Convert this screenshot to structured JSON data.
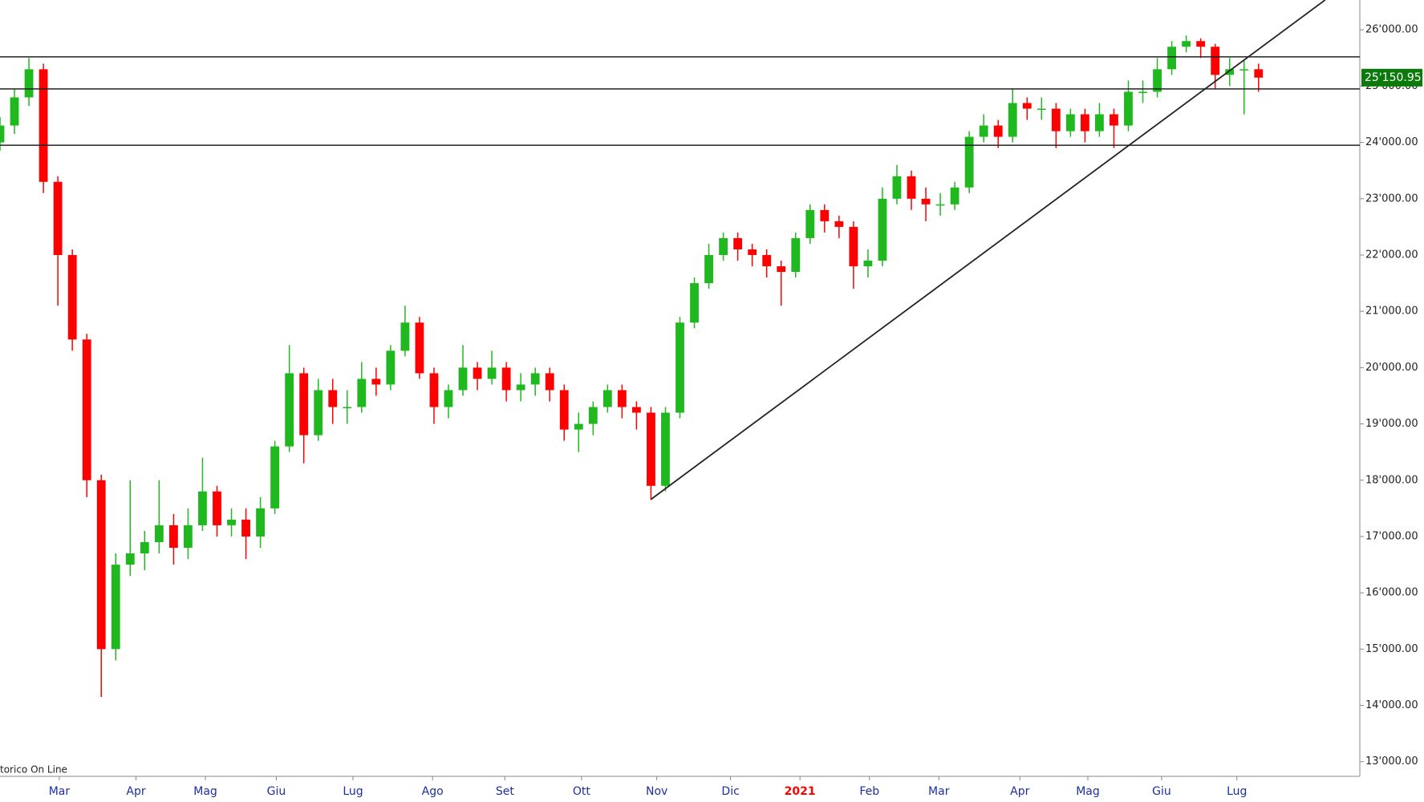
{
  "chart_data": {
    "type": "candlestick",
    "up_color": "#1fb81f",
    "down_color": "#ff0000",
    "open": [
      24000,
      24300,
      24800,
      25300,
      23300,
      22000,
      20500,
      18000,
      15000,
      16500,
      16700,
      16900,
      17200,
      16800,
      17200,
      17800,
      17200,
      17300,
      17000,
      17500,
      18600,
      19900,
      18800,
      19600,
      19300,
      19300,
      19800,
      19700,
      20300,
      20800,
      19900,
      19300,
      19600,
      20000,
      19800,
      20000,
      19600,
      19700,
      19900,
      19600,
      18900,
      19000,
      19300,
      19600,
      19300,
      19200,
      17900,
      19200,
      20800,
      21500,
      22000,
      22300,
      22100,
      22000,
      21800,
      21700,
      22300,
      22800,
      22600,
      22500,
      21800,
      21900,
      23000,
      23400,
      23000,
      22900,
      22900,
      23200,
      24100,
      24300,
      24100,
      24700,
      24600,
      24600,
      24200,
      24500,
      24200,
      24500,
      24300,
      24900,
      24900,
      25300,
      25700,
      25800,
      25700,
      25200,
      25300,
      25300
    ],
    "high": [
      24450,
      24950,
      25500,
      25400,
      23400,
      22100,
      20600,
      18100,
      16700,
      18000,
      17100,
      18000,
      17400,
      17500,
      18400,
      17900,
      17500,
      17500,
      17700,
      18700,
      20400,
      20000,
      19800,
      19800,
      19600,
      20100,
      20000,
      20400,
      21100,
      20900,
      20000,
      19700,
      20400,
      20100,
      20300,
      20100,
      19900,
      20000,
      20000,
      19700,
      19200,
      19400,
      19700,
      19700,
      19400,
      19300,
      19300,
      20900,
      21600,
      22200,
      22400,
      22400,
      22200,
      22100,
      21900,
      22400,
      22900,
      22900,
      22700,
      22600,
      22100,
      23200,
      23600,
      23500,
      23200,
      23100,
      23300,
      24200,
      24500,
      24400,
      24950,
      24800,
      24800,
      24700,
      24600,
      24600,
      24700,
      24600,
      25100,
      25100,
      25500,
      25800,
      25900,
      25850,
      25750,
      25500,
      25450,
      25400
    ],
    "low": [
      23850,
      24150,
      24650,
      23100,
      21100,
      20300,
      17700,
      14150,
      14800,
      16300,
      16400,
      16700,
      16500,
      16600,
      17100,
      17000,
      17000,
      16600,
      16800,
      17400,
      18500,
      18300,
      18700,
      19000,
      19000,
      19200,
      19500,
      19600,
      20200,
      19800,
      19000,
      19100,
      19500,
      19600,
      19700,
      19400,
      19400,
      19500,
      19400,
      18700,
      18500,
      18800,
      19200,
      19100,
      18900,
      17650,
      17800,
      19100,
      20700,
      21400,
      21900,
      21900,
      21800,
      21600,
      21100,
      21600,
      22200,
      22400,
      22300,
      21400,
      21600,
      21800,
      22900,
      22800,
      22600,
      22700,
      22800,
      23100,
      24000,
      23900,
      24000,
      24400,
      24400,
      23900,
      24100,
      24000,
      24100,
      23900,
      24200,
      24700,
      24800,
      25200,
      25600,
      25500,
      24950,
      25000,
      24500,
      24900
    ],
    "close": [
      24300,
      24800,
      25300,
      23300,
      22000,
      20500,
      18000,
      15000,
      16500,
      16700,
      16900,
      17200,
      16800,
      17200,
      17800,
      17200,
      17300,
      17000,
      17500,
      18600,
      19900,
      18800,
      19600,
      19300,
      19300,
      19800,
      19700,
      20300,
      20800,
      19900,
      19300,
      19600,
      20000,
      19800,
      20000,
      19600,
      19700,
      19900,
      19600,
      18900,
      19000,
      19300,
      19600,
      19300,
      19200,
      17900,
      19200,
      20800,
      21500,
      22000,
      22300,
      22100,
      22000,
      21800,
      21700,
      22300,
      22800,
      22600,
      22500,
      21800,
      21900,
      23000,
      23400,
      23000,
      22900,
      22900,
      23200,
      24100,
      24300,
      24100,
      24700,
      24600,
      24600,
      24200,
      24500,
      24200,
      24500,
      24300,
      24900,
      24900,
      25300,
      25700,
      25800,
      25700,
      25200,
      25300,
      25300,
      25150.95
    ],
    "xlim": [
      0,
      94
    ],
    "xticks": [
      {
        "value": 4.1,
        "label": "Mar"
      },
      {
        "value": 9.4,
        "label": "Apr"
      },
      {
        "value": 14.2,
        "label": "Mag"
      },
      {
        "value": 19.1,
        "label": "Giu"
      },
      {
        "value": 24.4,
        "label": "Lug"
      },
      {
        "value": 29.9,
        "label": "Ago"
      },
      {
        "value": 34.9,
        "label": "Set"
      },
      {
        "value": 40.2,
        "label": "Ott"
      },
      {
        "value": 45.4,
        "label": "Nov"
      },
      {
        "value": 50.5,
        "label": "Dic"
      },
      {
        "value": 55.3,
        "label": "2021"
      },
      {
        "value": 60.1,
        "label": "Feb"
      },
      {
        "value": 64.9,
        "label": "Mar"
      },
      {
        "value": 70.5,
        "label": "Apr"
      },
      {
        "value": 75.2,
        "label": "Mag"
      },
      {
        "value": 80.3,
        "label": "Giu"
      },
      {
        "value": 85.5,
        "label": "Lug"
      }
    ],
    "year_tick_index": 10,
    "xtick_color": "#1c2fa0",
    "year_tick_color": "#ff0000",
    "ylim": [
      12740,
      26530
    ],
    "yticks": [
      {
        "value": 13000,
        "label": "13'000.00"
      },
      {
        "value": 14000,
        "label": "14'000.00"
      },
      {
        "value": 15000,
        "label": "15'000.00"
      },
      {
        "value": 16000,
        "label": "16'000.00"
      },
      {
        "value": 17000,
        "label": "17'000.00"
      },
      {
        "value": 18000,
        "label": "18'000.00"
      },
      {
        "value": 19000,
        "label": "19'000.00"
      },
      {
        "value": 20000,
        "label": "20'000.00"
      },
      {
        "value": 21000,
        "label": "21'000.00"
      },
      {
        "value": 22000,
        "label": "22'000.00"
      },
      {
        "value": 23000,
        "label": "23'000.00"
      },
      {
        "value": 24000,
        "label": "24'000.00"
      },
      {
        "value": 25000,
        "label": "25'000.00"
      },
      {
        "value": 26000,
        "label": "26'000.00"
      }
    ],
    "levels": [
      25520,
      24950,
      23950
    ],
    "trendline": {
      "x": [
        45,
        91.6
      ],
      "y": [
        17660,
        26530
      ]
    },
    "last_price": {
      "value": 25150.95,
      "label": "25'150.95"
    },
    "last_price_color": "#0b7a0b",
    "watermark": "torico On Line"
  }
}
